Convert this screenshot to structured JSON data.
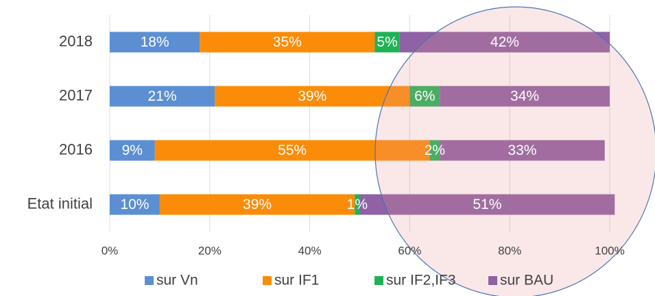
{
  "chart_data": {
    "type": "bar",
    "orientation": "horizontal",
    "stacked": true,
    "categories": [
      "2018",
      "2017",
      "2016",
      "Etat initial"
    ],
    "series": [
      {
        "name": "sur Vn",
        "color": "#5b8fd1",
        "values": [
          18,
          21,
          9,
          10
        ],
        "value_labels": [
          "18%",
          "21%",
          "9%",
          "10%"
        ]
      },
      {
        "name": "sur IF1",
        "color": "#fb8c0a",
        "values": [
          35,
          39,
          55,
          39
        ],
        "value_labels": [
          "35%",
          "39%",
          "55%",
          "39%"
        ]
      },
      {
        "name": "sur IF2,IF3",
        "color": "#1fb255",
        "values": [
          5,
          6,
          2,
          1
        ],
        "value_labels": [
          "5%",
          "6%",
          "2%",
          "1%"
        ]
      },
      {
        "name": "sur BAU",
        "color": "#8e62a4",
        "values": [
          42,
          34,
          33,
          51
        ],
        "value_labels": [
          "42%",
          "34%",
          "33%",
          "51%"
        ]
      }
    ],
    "xlim": [
      0,
      100
    ],
    "xticks": [
      {
        "value": 0,
        "label": "0%"
      },
      {
        "value": 20,
        "label": "20%"
      },
      {
        "value": 40,
        "label": "40%"
      },
      {
        "value": 60,
        "label": "60%"
      },
      {
        "value": 80,
        "label": "80%"
      },
      {
        "value": 100,
        "label": "100%"
      }
    ],
    "grid": true,
    "legend": "bottom"
  }
}
